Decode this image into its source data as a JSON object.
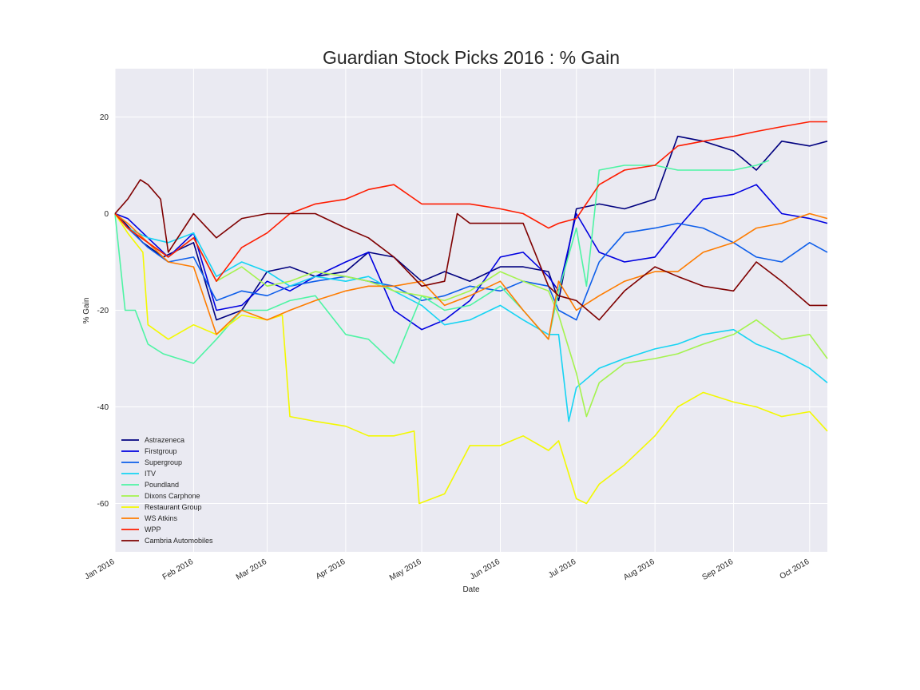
{
  "chart_data": {
    "type": "line",
    "title": "Guardian Stock Picks 2016 : % Gain",
    "xlabel": "Date",
    "ylabel": "% Gain",
    "xlim": [
      "2016-01-01",
      "2016-10-08"
    ],
    "ylim": [
      -70,
      30
    ],
    "y_ticks": [
      20,
      0,
      -20,
      -40,
      -60
    ],
    "x_ticks": [
      {
        "date": "2016-01-01",
        "label": "Jan 2016"
      },
      {
        "date": "2016-02-01",
        "label": "Feb 2016"
      },
      {
        "date": "2016-03-01",
        "label": "Mar 2016"
      },
      {
        "date": "2016-04-01",
        "label": "Apr 2016"
      },
      {
        "date": "2016-05-01",
        "label": "May 2016"
      },
      {
        "date": "2016-06-01",
        "label": "Jun 2016"
      },
      {
        "date": "2016-07-01",
        "label": "Jul 2016"
      },
      {
        "date": "2016-08-01",
        "label": "Aug 2016"
      },
      {
        "date": "2016-09-01",
        "label": "Sep 2016"
      },
      {
        "date": "2016-10-01",
        "label": "Oct 2016"
      }
    ],
    "grid": true,
    "legend_position": "lower-left",
    "background": "#eaeaf2",
    "series": [
      {
        "name": "Astrazeneca",
        "color": "#00007f",
        "x": [
          "2016-01-01",
          "2016-01-05",
          "2016-01-12",
          "2016-01-20",
          "2016-02-01",
          "2016-02-10",
          "2016-02-20",
          "2016-03-01",
          "2016-03-10",
          "2016-03-20",
          "2016-04-01",
          "2016-04-10",
          "2016-04-20",
          "2016-05-01",
          "2016-05-10",
          "2016-05-20",
          "2016-06-01",
          "2016-06-10",
          "2016-06-20",
          "2016-06-24",
          "2016-07-01",
          "2016-07-10",
          "2016-07-20",
          "2016-08-01",
          "2016-08-10",
          "2016-08-20",
          "2016-09-01",
          "2016-09-10",
          "2016-09-20",
          "2016-10-01",
          "2016-10-08"
        ],
        "y": [
          0,
          -2,
          -6,
          -9,
          -6,
          -22,
          -20,
          -12,
          -11,
          -13,
          -12,
          -8,
          -9,
          -14,
          -12,
          -14,
          -11,
          -11,
          -12,
          -18,
          1,
          2,
          1,
          3,
          16,
          15,
          13,
          9,
          15,
          14,
          15
        ]
      },
      {
        "name": "Firstgroup",
        "color": "#0000e0",
        "x": [
          "2016-01-01",
          "2016-01-06",
          "2016-01-14",
          "2016-01-22",
          "2016-02-01",
          "2016-02-10",
          "2016-02-20",
          "2016-03-01",
          "2016-03-10",
          "2016-03-20",
          "2016-04-01",
          "2016-04-10",
          "2016-04-20",
          "2016-05-01",
          "2016-05-10",
          "2016-05-20",
          "2016-06-01",
          "2016-06-10",
          "2016-06-20",
          "2016-06-24",
          "2016-07-01",
          "2016-07-10",
          "2016-07-20",
          "2016-08-01",
          "2016-08-10",
          "2016-08-20",
          "2016-09-01",
          "2016-09-10",
          "2016-09-20",
          "2016-10-01",
          "2016-10-08"
        ],
        "y": [
          0,
          -1,
          -5,
          -9,
          -4,
          -20,
          -19,
          -14,
          -16,
          -13,
          -10,
          -8,
          -20,
          -24,
          -22,
          -18,
          -9,
          -8,
          -13,
          -16,
          0,
          -8,
          -10,
          -9,
          -3,
          3,
          4,
          6,
          0,
          -1,
          -2
        ]
      },
      {
        "name": "Supergroup",
        "color": "#0d5eea",
        "x": [
          "2016-01-01",
          "2016-01-06",
          "2016-01-14",
          "2016-01-22",
          "2016-02-01",
          "2016-02-10",
          "2016-02-20",
          "2016-03-01",
          "2016-03-10",
          "2016-03-20",
          "2016-04-01",
          "2016-04-10",
          "2016-04-20",
          "2016-05-01",
          "2016-05-10",
          "2016-05-20",
          "2016-06-01",
          "2016-06-10",
          "2016-06-20",
          "2016-06-24",
          "2016-07-01",
          "2016-07-10",
          "2016-07-20",
          "2016-08-01",
          "2016-08-10",
          "2016-08-20",
          "2016-09-01",
          "2016-09-10",
          "2016-09-20",
          "2016-10-01",
          "2016-10-08"
        ],
        "y": [
          0,
          -3,
          -7,
          -10,
          -9,
          -18,
          -16,
          -17,
          -15,
          -14,
          -13,
          -14,
          -15,
          -18,
          -17,
          -15,
          -16,
          -14,
          -15,
          -20,
          -22,
          -10,
          -4,
          -3,
          -2,
          -3,
          -6,
          -9,
          -10,
          -6,
          -8
        ]
      },
      {
        "name": "ITV",
        "color": "#16d4f3",
        "x": [
          "2016-01-01",
          "2016-01-06",
          "2016-01-14",
          "2016-01-22",
          "2016-02-01",
          "2016-02-10",
          "2016-02-20",
          "2016-03-01",
          "2016-03-10",
          "2016-03-20",
          "2016-04-01",
          "2016-04-10",
          "2016-04-20",
          "2016-05-01",
          "2016-05-10",
          "2016-05-20",
          "2016-06-01",
          "2016-06-10",
          "2016-06-20",
          "2016-06-24",
          "2016-06-28",
          "2016-07-01",
          "2016-07-10",
          "2016-07-20",
          "2016-08-01",
          "2016-08-10",
          "2016-08-20",
          "2016-09-01",
          "2016-09-10",
          "2016-09-20",
          "2016-10-01",
          "2016-10-08"
        ],
        "y": [
          0,
          -3,
          -5,
          -6,
          -4,
          -13,
          -10,
          -12,
          -15,
          -13,
          -14,
          -13,
          -16,
          -19,
          -23,
          -22,
          -19,
          -22,
          -25,
          -25,
          -43,
          -36,
          -32,
          -30,
          -28,
          -27,
          -25,
          -24,
          -27,
          -29,
          -32,
          -35
        ]
      },
      {
        "name": "Poundland",
        "color": "#4ef4a4",
        "x": [
          "2016-01-01",
          "2016-01-05",
          "2016-01-09",
          "2016-01-14",
          "2016-01-20",
          "2016-02-01",
          "2016-02-10",
          "2016-02-20",
          "2016-03-01",
          "2016-03-10",
          "2016-03-20",
          "2016-04-01",
          "2016-04-10",
          "2016-04-20",
          "2016-05-01",
          "2016-05-10",
          "2016-05-20",
          "2016-06-01",
          "2016-06-10",
          "2016-06-20",
          "2016-06-24",
          "2016-07-01",
          "2016-07-05",
          "2016-07-10",
          "2016-07-20",
          "2016-08-01",
          "2016-08-10",
          "2016-08-20",
          "2016-09-01",
          "2016-09-10",
          "2016-09-15"
        ],
        "y": [
          0,
          -20,
          -20,
          -27,
          -29,
          -31,
          -26,
          -20,
          -20,
          -18,
          -17,
          -25,
          -26,
          -31,
          -17,
          -20,
          -19,
          -15,
          -20,
          -26,
          -16,
          -3,
          -15,
          9,
          10,
          10,
          9,
          9,
          9,
          10,
          11
        ]
      },
      {
        "name": "Dixons Carphone",
        "color": "#a4f34e",
        "x": [
          "2016-01-01",
          "2016-01-06",
          "2016-01-14",
          "2016-01-22",
          "2016-02-01",
          "2016-02-10",
          "2016-02-20",
          "2016-03-01",
          "2016-03-10",
          "2016-03-20",
          "2016-04-01",
          "2016-04-10",
          "2016-04-20",
          "2016-05-01",
          "2016-05-10",
          "2016-05-20",
          "2016-06-01",
          "2016-06-10",
          "2016-06-20",
          "2016-06-24",
          "2016-07-01",
          "2016-07-05",
          "2016-07-10",
          "2016-07-20",
          "2016-08-01",
          "2016-08-10",
          "2016-08-20",
          "2016-09-01",
          "2016-09-10",
          "2016-09-20",
          "2016-10-01",
          "2016-10-08"
        ],
        "y": [
          0,
          -3,
          -6,
          -9,
          -5,
          -14,
          -11,
          -15,
          -14,
          -12,
          -13,
          -14,
          -16,
          -17,
          -18,
          -16,
          -12,
          -14,
          -16,
          -21,
          -33,
          -42,
          -35,
          -31,
          -30,
          -29,
          -27,
          -25,
          -22,
          -26,
          -25,
          -30
        ]
      },
      {
        "name": "Restaurant Group",
        "color": "#f3f900",
        "x": [
          "2016-01-01",
          "2016-01-06",
          "2016-01-12",
          "2016-01-14",
          "2016-01-22",
          "2016-02-01",
          "2016-02-10",
          "2016-02-20",
          "2016-03-01",
          "2016-03-07",
          "2016-03-10",
          "2016-03-20",
          "2016-04-01",
          "2016-04-10",
          "2016-04-20",
          "2016-04-28",
          "2016-04-30",
          "2016-05-10",
          "2016-05-20",
          "2016-06-01",
          "2016-06-10",
          "2016-06-20",
          "2016-06-24",
          "2016-07-01",
          "2016-07-05",
          "2016-07-10",
          "2016-07-20",
          "2016-08-01",
          "2016-08-10",
          "2016-08-20",
          "2016-09-01",
          "2016-09-10",
          "2016-09-20",
          "2016-10-01",
          "2016-10-08"
        ],
        "y": [
          0,
          -4,
          -8,
          -23,
          -26,
          -23,
          -25,
          -21,
          -22,
          -21,
          -42,
          -43,
          -44,
          -46,
          -46,
          -45,
          -60,
          -58,
          -48,
          -48,
          -46,
          -49,
          -47,
          -59,
          -60,
          -56,
          -52,
          -46,
          -40,
          -37,
          -39,
          -40,
          -42,
          -41,
          -45
        ]
      },
      {
        "name": "WS Atkins",
        "color": "#fe7c00",
        "x": [
          "2016-01-01",
          "2016-01-06",
          "2016-01-14",
          "2016-01-22",
          "2016-02-01",
          "2016-02-10",
          "2016-02-20",
          "2016-03-01",
          "2016-03-10",
          "2016-03-20",
          "2016-04-01",
          "2016-04-10",
          "2016-04-20",
          "2016-05-01",
          "2016-05-10",
          "2016-05-20",
          "2016-06-01",
          "2016-06-10",
          "2016-06-20",
          "2016-06-24",
          "2016-07-01",
          "2016-07-10",
          "2016-07-20",
          "2016-08-01",
          "2016-08-10",
          "2016-08-20",
          "2016-09-01",
          "2016-09-10",
          "2016-09-20",
          "2016-10-01",
          "2016-10-08"
        ],
        "y": [
          0,
          -2,
          -6,
          -10,
          -11,
          -25,
          -20,
          -22,
          -20,
          -18,
          -16,
          -15,
          -15,
          -14,
          -19,
          -17,
          -14,
          -20,
          -26,
          -14,
          -20,
          -17,
          -14,
          -12,
          -12,
          -8,
          -6,
          -3,
          -2,
          0,
          -1
        ]
      },
      {
        "name": "WPP",
        "color": "#fe1c00",
        "x": [
          "2016-01-01",
          "2016-01-06",
          "2016-01-14",
          "2016-01-22",
          "2016-02-01",
          "2016-02-10",
          "2016-02-20",
          "2016-03-01",
          "2016-03-10",
          "2016-03-20",
          "2016-04-01",
          "2016-04-10",
          "2016-04-20",
          "2016-05-01",
          "2016-05-10",
          "2016-05-20",
          "2016-06-01",
          "2016-06-10",
          "2016-06-20",
          "2016-06-24",
          "2016-07-01",
          "2016-07-10",
          "2016-07-20",
          "2016-08-01",
          "2016-08-10",
          "2016-08-20",
          "2016-09-01",
          "2016-09-10",
          "2016-09-20",
          "2016-10-01",
          "2016-10-08"
        ],
        "y": [
          0,
          -3,
          -6,
          -9,
          -5,
          -14,
          -7,
          -4,
          0,
          2,
          3,
          5,
          6,
          2,
          2,
          2,
          1,
          0,
          -3,
          -2,
          -1,
          6,
          9,
          10,
          14,
          15,
          16,
          17,
          18,
          19,
          19
        ]
      },
      {
        "name": "Cambria Automobiles",
        "color": "#7f0000",
        "x": [
          "2016-01-01",
          "2016-01-06",
          "2016-01-11",
          "2016-01-14",
          "2016-01-19",
          "2016-01-22",
          "2016-02-01",
          "2016-02-10",
          "2016-02-20",
          "2016-03-01",
          "2016-03-10",
          "2016-03-20",
          "2016-04-01",
          "2016-04-10",
          "2016-04-20",
          "2016-05-01",
          "2016-05-10",
          "2016-05-15",
          "2016-05-20",
          "2016-06-01",
          "2016-06-10",
          "2016-06-20",
          "2016-06-24",
          "2016-07-01",
          "2016-07-10",
          "2016-07-20",
          "2016-08-01",
          "2016-08-10",
          "2016-08-20",
          "2016-09-01",
          "2016-09-10",
          "2016-09-20",
          "2016-10-01",
          "2016-10-08"
        ],
        "y": [
          0,
          3,
          7,
          6,
          3,
          -8,
          0,
          -5,
          -1,
          0,
          0,
          0,
          -3,
          -5,
          -9,
          -15,
          -14,
          0,
          -2,
          -2,
          -2,
          -15,
          -17,
          -18,
          -22,
          -16,
          -11,
          -13,
          -15,
          -16,
          -10,
          -14,
          -19,
          -19
        ]
      }
    ]
  }
}
